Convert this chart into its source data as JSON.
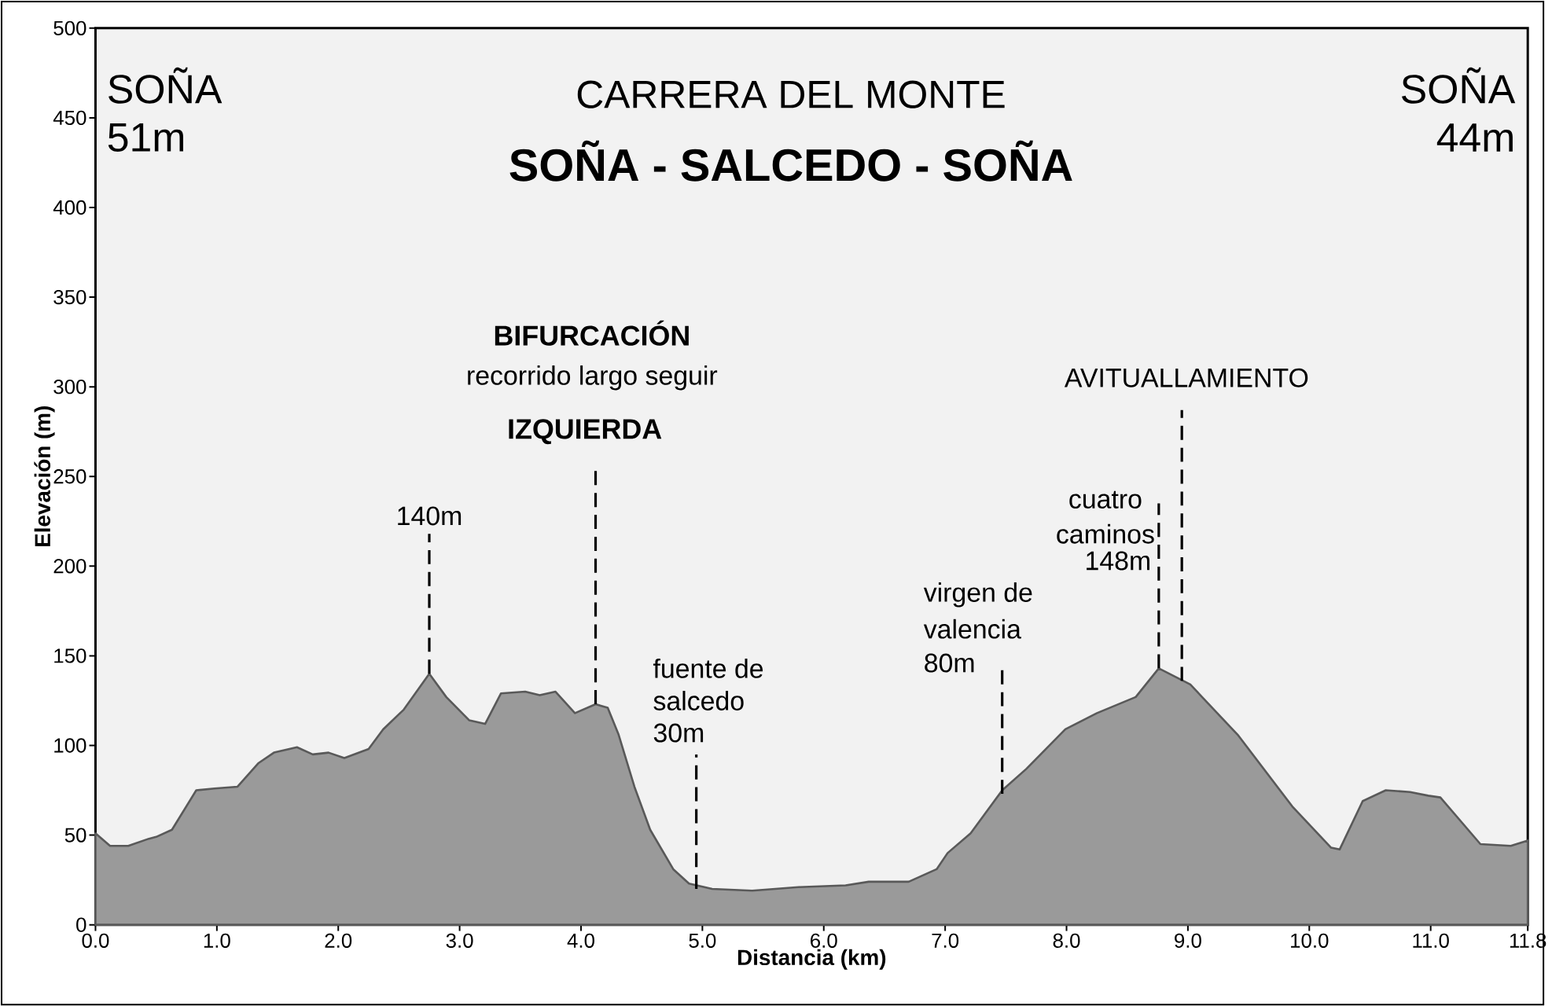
{
  "chart_data": {
    "type": "area",
    "title": "CARRERA DEL MONTE",
    "subtitle": "SOÑA - SALCEDO - SOÑA",
    "xlabel": "Distancia (km)",
    "ylabel": "Elevación (m)",
    "x": [
      0,
      0.12,
      0.27,
      0.44,
      0.5,
      0.63,
      0.83,
      0.98,
      1.17,
      1.34,
      1.47,
      1.66,
      1.79,
      1.92,
      2.05,
      2.25,
      2.37,
      2.54,
      2.75,
      2.89,
      3.08,
      3.21,
      3.34,
      3.54,
      3.66,
      3.79,
      3.95,
      4.12,
      4.22,
      4.31,
      4.44,
      4.57,
      4.76,
      4.89,
      5.08,
      5.41,
      5.79,
      6.18,
      6.37,
      6.7,
      6.93,
      7.02,
      7.21,
      7.47,
      7.67,
      7.99,
      8.25,
      8.57,
      8.76,
      9.02,
      9.41,
      9.86,
      10.18,
      10.25,
      10.44,
      10.63,
      10.83,
      10.98,
      11.08,
      11.41,
      11.66,
      11.8
    ],
    "series": [
      {
        "color": "#9a9a9a",
        "values": [
          51,
          44,
          44,
          48,
          49,
          53,
          75,
          76,
          77,
          90,
          96,
          99,
          95,
          96,
          93,
          98,
          109,
          120,
          140,
          127,
          114,
          112,
          129,
          130,
          128,
          130,
          118,
          123,
          121,
          106,
          77,
          53,
          31,
          23,
          20,
          19,
          21,
          22,
          24,
          24,
          31,
          40,
          51,
          75,
          87,
          109,
          118,
          127,
          143,
          134,
          106,
          66,
          43,
          42,
          69,
          75,
          74,
          72,
          71,
          45,
          44,
          47
        ]
      }
    ],
    "xlim": [
      0,
      11.8
    ],
    "ylim": [
      0,
      500
    ],
    "xticks": [
      {
        "value": 0,
        "label": "0.0"
      },
      {
        "value": 1,
        "label": "1.0"
      },
      {
        "value": 2,
        "label": "2.0"
      },
      {
        "value": 3,
        "label": "3.0"
      },
      {
        "value": 4,
        "label": "4.0"
      },
      {
        "value": 5,
        "label": "5.0"
      },
      {
        "value": 6,
        "label": "6.0"
      },
      {
        "value": 7,
        "label": "7.0"
      },
      {
        "value": 8,
        "label": "8.0"
      },
      {
        "value": 9,
        "label": "9.0"
      },
      {
        "value": 10,
        "label": "10.0"
      },
      {
        "value": 11,
        "label": "11.0"
      },
      {
        "value": 11.8,
        "label": "11.8"
      }
    ],
    "yticks": [
      0,
      50,
      100,
      150,
      200,
      250,
      300,
      350,
      400,
      450,
      500
    ],
    "annotations": [
      "SOÑA",
      "51m",
      "SOÑA",
      "44m",
      "BIFURCACIÓN",
      "recorrido largo seguir",
      {
        "text": "IZQUIERDA",
        "x": 4.12,
        "y": 123
      },
      {
        "text": "140m",
        "x": 2.75,
        "y": 140
      },
      "fuente de",
      "salcedo",
      {
        "text": "30m",
        "x": 4.95,
        "y": 20
      },
      "virgen de",
      "valencia",
      {
        "text": "80m",
        "x": 7.47,
        "y": 73
      },
      {
        "text": "cuatro",
        "x": 8.76,
        "y": 143
      },
      "caminos",
      "148m",
      {
        "text": "AVITUALLAMIENTO",
        "x": 8.95,
        "y": 136
      }
    ]
  }
}
